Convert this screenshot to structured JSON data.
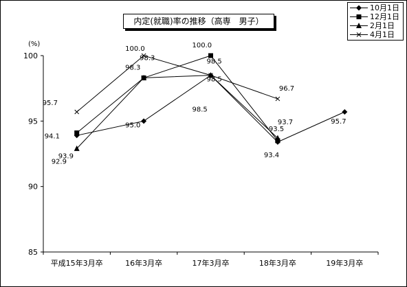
{
  "chart_data": {
    "type": "line",
    "title": "内定(就職)率の推移（高専　男子）",
    "ylabel": "(%)",
    "xlabel": "",
    "categories": [
      "平成15年3月卒",
      "16年3月卒",
      "17年3月卒",
      "18年3月卒",
      "19年3月卒"
    ],
    "ylim": [
      85,
      100
    ],
    "yticks": [
      85,
      90,
      95,
      100
    ],
    "grid": false,
    "legend_position": "top-right",
    "series": [
      {
        "name": "10月1日",
        "marker": "diamond",
        "values": [
          93.9,
          95.0,
          98.5,
          93.4,
          95.7
        ],
        "labels": [
          "93.9",
          "95.0",
          "98.5",
          "93.4",
          "95.7"
        ]
      },
      {
        "name": "12月1日",
        "marker": "square",
        "values": [
          94.1,
          98.3,
          100.0,
          93.5,
          null
        ],
        "labels": [
          "94.1",
          "98.3",
          "100.0",
          "93.5",
          ""
        ]
      },
      {
        "name": "2月1日",
        "marker": "triangle",
        "values": [
          92.9,
          98.3,
          98.5,
          93.7,
          null
        ],
        "labels": [
          "92.9",
          "98.3",
          "98.5",
          "93.7",
          ""
        ]
      },
      {
        "name": "4月1日",
        "marker": "x",
        "values": [
          95.7,
          100.0,
          98.5,
          96.7,
          null
        ],
        "labels": [
          "95.7",
          "100.0",
          "98.5",
          "96.7",
          ""
        ]
      }
    ]
  }
}
